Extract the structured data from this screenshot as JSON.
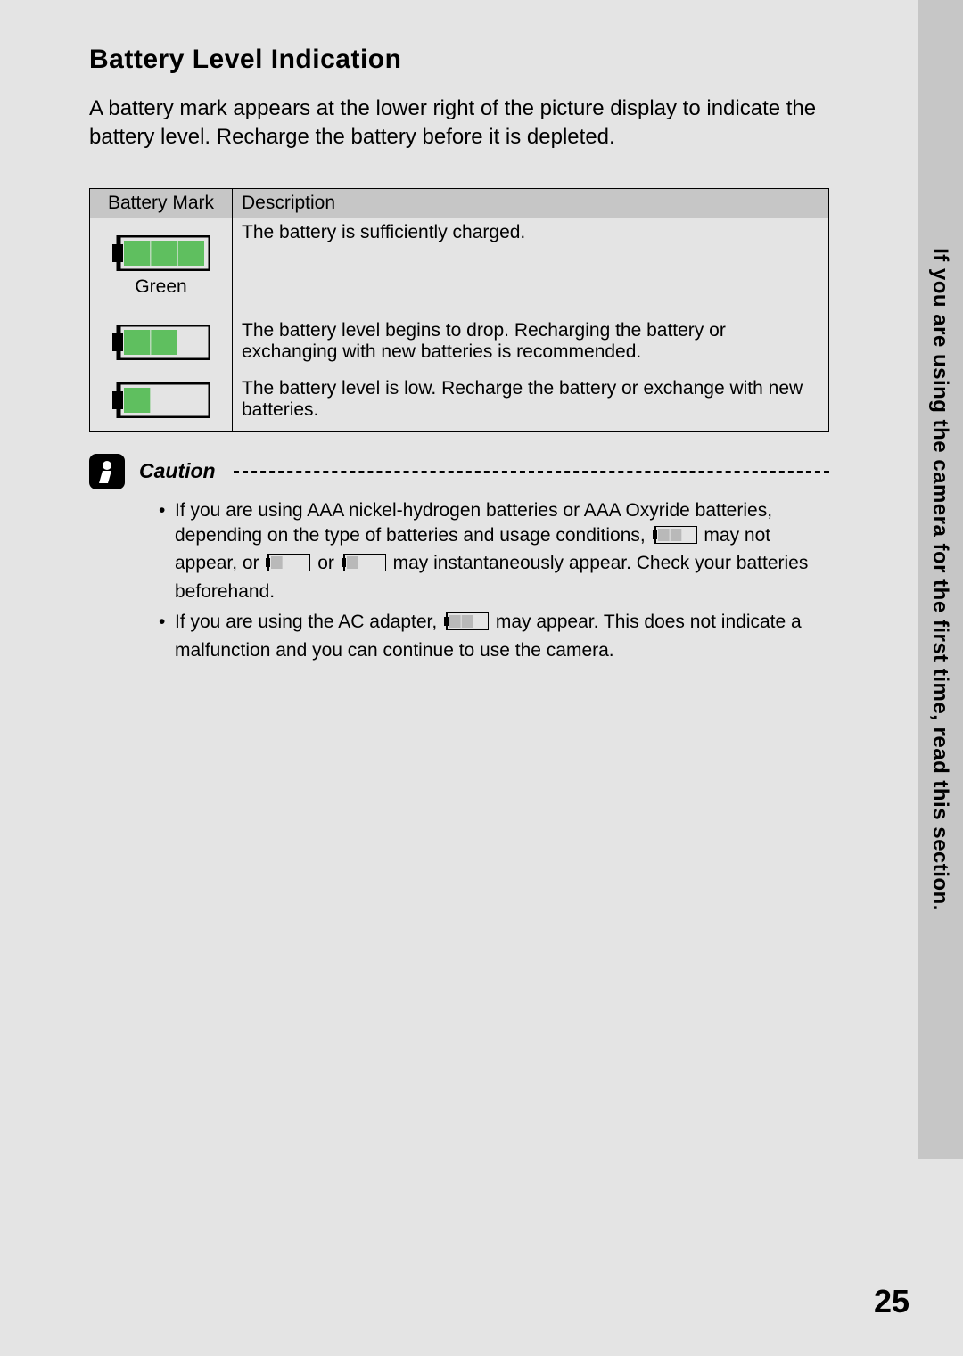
{
  "sideTab": "If you are using the camera for the first time, read this section.",
  "title": "Battery Level Indication",
  "intro": "A battery mark appears at the lower right of the picture display to indicate the battery level. Recharge the battery before it is depleted.",
  "table": {
    "headers": {
      "mark": "Battery Mark",
      "desc": "Description"
    },
    "rows": [
      {
        "fill": 3,
        "label": "Green",
        "fillColor": "#5fbf5f",
        "desc": "The battery is sufficiently charged."
      },
      {
        "fill": 2,
        "label": "",
        "fillColor": "#5fbf5f",
        "desc": "The battery level begins to drop. Recharging the battery or exchanging with new batteries is recommended."
      },
      {
        "fill": 1,
        "label": "",
        "fillColor": "#5fbf5f",
        "desc": "The battery level is low. Recharge the battery or exchange with new batteries."
      }
    ]
  },
  "caution": {
    "label": "Caution",
    "item1": {
      "t1": "If you are using AAA nickel-hydrogen batteries or AAA Oxyride batteries, depending on the type of batteries and usage conditions, ",
      "t2": " may not appear, or ",
      "t3": " or ",
      "t4": " may instantaneously appear. Check your batteries beforehand."
    },
    "item2": {
      "t1": "If you are using the AC adapter, ",
      "t2": " may appear. This does not indicate a malfunction and you can continue to use the camera."
    }
  },
  "pageNumber": "25",
  "iconColors": {
    "bodyStroke": "#000000",
    "green": "#5fbf5f",
    "cautionMark": "#ffffff"
  }
}
